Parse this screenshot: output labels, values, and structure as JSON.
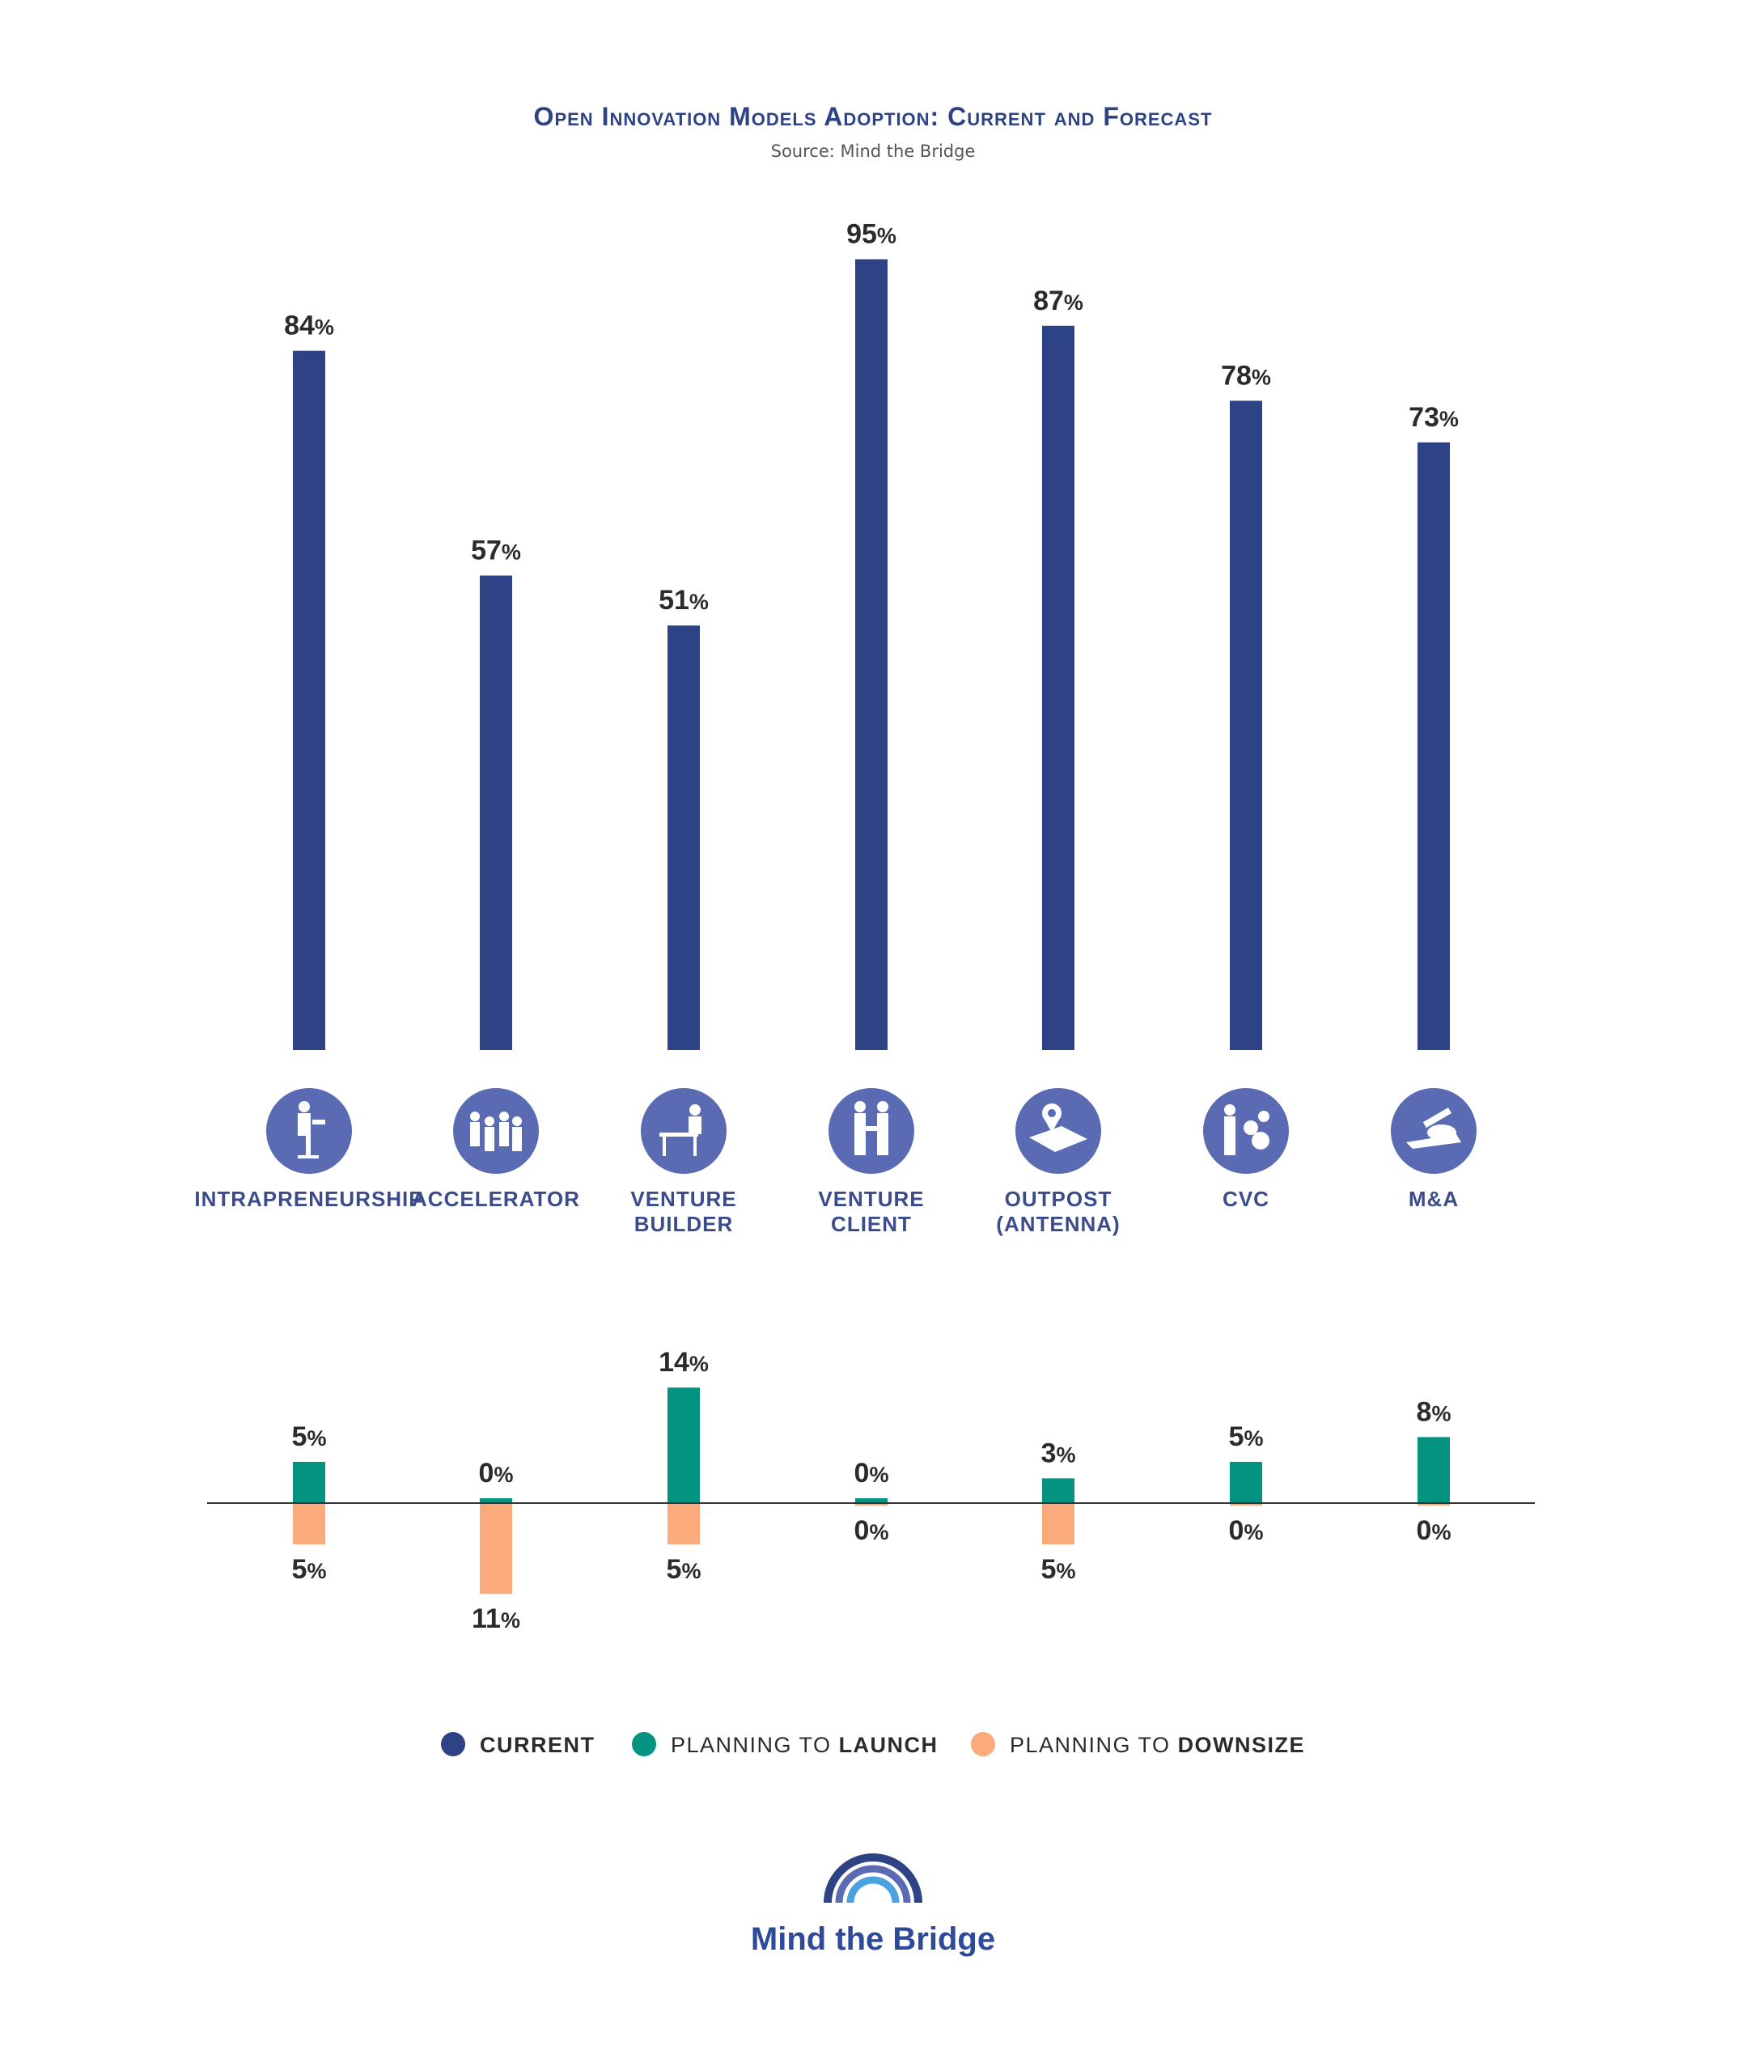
{
  "chart_data": {
    "type": "bar",
    "title": "Open Innovation Models Adoption: Current and Forecast",
    "subtitle": "Source: Mind the Bridge",
    "unit": "%",
    "categories": [
      [
        "INTRAPRENEURSHIP"
      ],
      [
        "ACCELERATOR"
      ],
      [
        "VENTURE",
        "BUILDER"
      ],
      [
        "VENTURE",
        "CLIENT"
      ],
      [
        "OUTPOST",
        "(ANTENNA)"
      ],
      [
        "CVC"
      ],
      [
        "M&A"
      ]
    ],
    "icons": [
      "presenter-podium-icon",
      "team-group-icon",
      "workshop-desk-icon",
      "handshake-icon",
      "map-location-pin-icon",
      "investor-money-icon",
      "signing-contract-icon"
    ],
    "series": [
      {
        "name": "CURRENT",
        "color": "#2e4385",
        "values": [
          84,
          57,
          51,
          95,
          87,
          78,
          73
        ]
      },
      {
        "name": "PLANNING TO LAUNCH",
        "color": "#049380",
        "values": [
          5,
          0,
          14,
          0,
          3,
          5,
          8
        ]
      },
      {
        "name": "PLANNING TO DOWNSIZE",
        "color": "#fbaa7c",
        "values": [
          5,
          11,
          5,
          0,
          5,
          0,
          0
        ]
      }
    ],
    "ylim": [
      0,
      100
    ],
    "legend": {
      "position": "bottom",
      "items": [
        {
          "plain": "",
          "bold": "CURRENT",
          "color": "#2e4385"
        },
        {
          "plain": "PLANNING TO ",
          "bold": "LAUNCH",
          "color": "#049380"
        },
        {
          "plain": "PLANNING TO ",
          "bold": "DOWNSIZE",
          "color": "#fbaa7c"
        }
      ]
    },
    "icon_circle_color": "#5a6bb3"
  },
  "logo": {
    "text": "Mind the Bridge",
    "colors": [
      "#2e4385",
      "#5a6bb3",
      "#4aa3df"
    ]
  }
}
